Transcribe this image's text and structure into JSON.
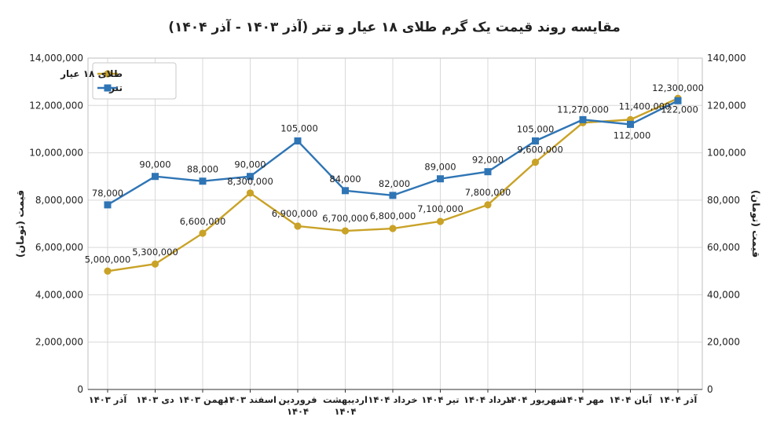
{
  "chart_data": {
    "type": "line",
    "title": "مقایسه روند قیمت یک گرم طلای ۱۸ عیار و تتر (آذر ۱۴۰۳ - آذر ۱۴۰۴)",
    "ylabel_left": "قیمت (تومان)",
    "ylabel_right": "قیمت (تومان)",
    "categories": [
      [
        "آذر ۱۴۰۳"
      ],
      [
        "دی ۱۴۰۳"
      ],
      [
        "بهمن ۱۴۰۳"
      ],
      [
        "اسفند ۱۴۰۳"
      ],
      [
        "فروردین",
        "۱۴۰۴"
      ],
      [
        "اردیبهشت",
        "۱۴۰۴"
      ],
      [
        "خرداد ۱۴۰۴"
      ],
      [
        "تیر ۱۴۰۴"
      ],
      [
        "مرداد ۱۴۰۴"
      ],
      [
        "شهریور ۱۴۰۴"
      ],
      [
        "مهر ۱۴۰۴"
      ],
      [
        "آبان ۱۴۰۴"
      ],
      [
        "آذر ۱۴۰۴"
      ]
    ],
    "ylim_left": [
      0,
      14000000
    ],
    "yticks_left": [
      "0",
      "2,000,000",
      "4,000,000",
      "6,000,000",
      "8,000,000",
      "10,000,000",
      "12,000,000",
      "14,000,000"
    ],
    "ylim_right": [
      0,
      140000
    ],
    "yticks_right": [
      "0",
      "20,000",
      "40,000",
      "60,000",
      "80,000",
      "100,000",
      "120,000",
      "140,000"
    ],
    "grid": true,
    "legend_position": "top-left",
    "series": [
      {
        "name": "طلای ۱۸ عیار",
        "axis": "left",
        "color": "#c9a227",
        "marker": "circle",
        "values": [
          5000000,
          5300000,
          6600000,
          8300000,
          6900000,
          6700000,
          6800000,
          7100000,
          7800000,
          9600000,
          11270000,
          11400000,
          12300000
        ],
        "labels": [
          "5,000,000",
          "5,300,000",
          "6,600,000",
          "8,300,000",
          "6,900,000",
          "6,700,000",
          "6,800,000",
          "7,100,000",
          "7,800,000",
          "9,600,000",
          "11,270,000",
          "11,400,000",
          "12,300,000"
        ]
      },
      {
        "name": "تتر",
        "axis": "right",
        "color": "#2f75b5",
        "marker": "square",
        "values": [
          78000,
          90000,
          88000,
          90000,
          105000,
          84000,
          82000,
          89000,
          92000,
          105000,
          114000,
          112000,
          122000
        ],
        "labels": [
          "78,000",
          "90,000",
          "88,000",
          "90,000",
          "105,000",
          "84,000",
          "82,000",
          "89,000",
          "92,000",
          "105,000",
          "",
          "112,000",
          "122,000"
        ]
      }
    ]
  }
}
